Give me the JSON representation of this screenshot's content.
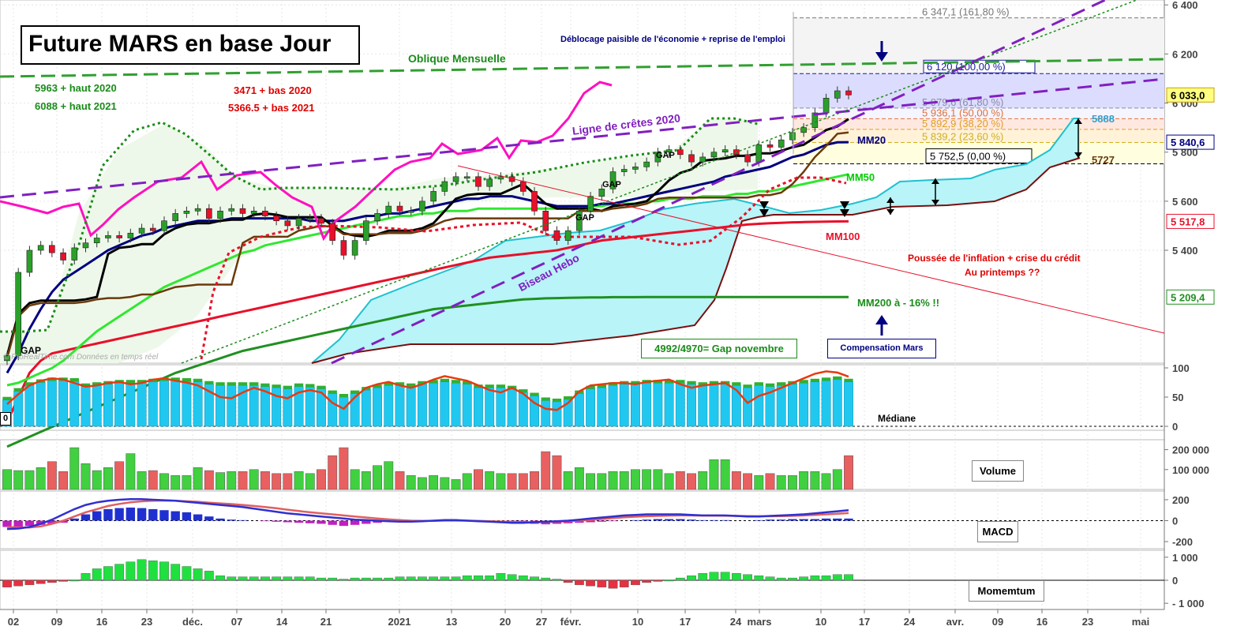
{
  "title": "Future MARS en base Jour",
  "watermark": "© ProRealTime.com  Données en temps réel",
  "annotations": {
    "haut2020": "5963 + haut 2020",
    "haut2021": "6088 + haut 2021",
    "bas2020": "3471 + bas 2020",
    "bas2021": "5366.5 + bas 2021",
    "oblique": "Oblique Mensuelle",
    "deblocage": "Déblocage paisible de l'économie + reprise de l'emploi",
    "lignecretes": "Ligne de crêtes 2020",
    "biseau": "Biseau Hebo",
    "inflation1": "Poussée de l'inflation + crise du crédit",
    "inflation2": "Au printemps ??",
    "mm20": "MM20",
    "mm50": "MM50",
    "mm100": "MM100",
    "mm200": "MM200 à - 16% !!",
    "gap": "GAP",
    "gapnov": "4992/4970= Gap novembre",
    "compensation": "Compensation Mars",
    "v5888": "5888",
    "v5727": "5727",
    "mediane": "Médiane",
    "volume": "Volume",
    "macd": "MACD",
    "momentum": "Momemtum",
    "lastrsi": "0"
  },
  "fibo": [
    {
      "label": "6 347,1 (161,80 %)",
      "value": 6347.1,
      "color": "#777777"
    },
    {
      "label": "6 120 (100,00 %)",
      "value": 6120,
      "color": "#1a1aa0"
    },
    {
      "label": "5 979,6 (61,80 %)",
      "value": 5979.6,
      "color": "#8a8aa8"
    },
    {
      "label": "5 936,1 (50,00 %)",
      "value": 5936.1,
      "color": "#e0703a"
    },
    {
      "label": "5 892,9 (38,20 %)",
      "value": 5892.9,
      "color": "#e0a020"
    },
    {
      "label": "5 839,2 (23,60 %)",
      "value": 5839.2,
      "color": "#d0b020"
    },
    {
      "label": "5 752,5 (0,00 %)",
      "value": 5752.5,
      "color": "#000000"
    }
  ],
  "price_tags": [
    {
      "label": "6 033,0",
      "value": 6033,
      "bg": "#ffff80",
      "color": "#000000",
      "border": "#c8a000"
    },
    {
      "label": "5 840,6",
      "value": 5840.6,
      "bg": "#ffffff",
      "color": "#000080",
      "border": "#000080"
    },
    {
      "label": "5 517,8",
      "value": 5517.8,
      "bg": "#ffffff",
      "color": "#e8102a",
      "border": "#e8102a"
    },
    {
      "label": "5 209,4",
      "value": 5209.4,
      "bg": "#ffffff",
      "color": "#209020",
      "border": "#209020"
    }
  ],
  "chart_data": [
    {
      "type": "candlestick",
      "title": "Future MARS en base Jour",
      "y_ticks": [
        6400,
        6200,
        6000,
        5800,
        5600,
        5400
      ],
      "y_tick_labels": [
        "6 400",
        "6 200",
        "6 000",
        "5 800",
        "5 600",
        "5 400"
      ],
      "ylim": [
        4940,
        6420
      ],
      "x_tick_labels": [
        "02",
        "09",
        "16",
        "23",
        "déc.",
        "07",
        "14",
        "21",
        "2021",
        "13",
        "20",
        "27",
        "févr.",
        "10",
        "17",
        "24",
        "mars",
        "10",
        "17",
        "24",
        "avr.",
        "09",
        "16",
        "23",
        "mai"
      ],
      "close": [
        4970,
        5310,
        5400,
        5420,
        5390,
        5360,
        5410,
        5430,
        5450,
        5460,
        5450,
        5470,
        5490,
        5480,
        5520,
        5550,
        5560,
        5570,
        5530,
        5560,
        5570,
        5550,
        5560,
        5540,
        5520,
        5500,
        5530,
        5530,
        5510,
        5440,
        5380,
        5440,
        5520,
        5550,
        5580,
        5560,
        5560,
        5600,
        5640,
        5680,
        5700,
        5700,
        5660,
        5690,
        5700,
        5680,
        5640,
        5560,
        5480,
        5440,
        5480,
        5560,
        5620,
        5650,
        5720,
        5730,
        5740,
        5760,
        5800,
        5810,
        5790,
        5760,
        5780,
        5800,
        5810,
        5790,
        5760,
        5830,
        5820,
        5850,
        5880,
        5900,
        5960,
        6020,
        6050,
        6033
      ],
      "ma20": [
        4900,
        4980,
        5080,
        5160,
        5230,
        5280,
        5310,
        5340,
        5370,
        5400,
        5420,
        5440,
        5460,
        5470,
        5490,
        5500,
        5510,
        5520,
        5520,
        5520,
        5530,
        5530,
        5530,
        5530,
        5530,
        5530,
        5530,
        5520,
        5520,
        5520,
        5520,
        5530,
        5540,
        5540,
        5550,
        5550,
        5560,
        5570,
        5580,
        5590,
        5600,
        5610,
        5610,
        5620,
        5620,
        5620,
        5610,
        5600,
        5590,
        5580,
        5580,
        5580,
        5580,
        5590,
        5590,
        5600,
        5610,
        5620,
        5630,
        5640,
        5650,
        5660,
        5670,
        5680,
        5700,
        5710,
        5720,
        5730,
        5740,
        5760,
        5780,
        5790,
        5810,
        5830,
        5840,
        5840.6
      ],
      "ma50": [
        4850,
        4860,
        4880,
        4900,
        4920,
        4950,
        4990,
        5030,
        5070,
        5100,
        5130,
        5160,
        5190,
        5220,
        5250,
        5270,
        5290,
        5310,
        5330,
        5350,
        5370,
        5390,
        5400,
        5420,
        5430,
        5440,
        5450,
        5460,
        5470,
        5480,
        5490,
        5500,
        5510,
        5520,
        5530,
        5540,
        5540,
        5550,
        5550,
        5560,
        5560,
        5560,
        5570,
        5570,
        5570,
        5570,
        5570,
        5570,
        5570,
        5570,
        5580,
        5580,
        5580,
        5580,
        5590,
        5590,
        5590,
        5600,
        5600,
        5610,
        5610,
        5610,
        5620,
        5620,
        5620,
        5630,
        5630,
        5640,
        5640,
        5650,
        5660,
        5670,
        5680,
        5690,
        5700,
        5710
      ],
      "ma100": [
        4700,
        4800,
        4900,
        4950,
        4980,
        4990,
        5000,
        5010,
        5020,
        5030,
        5040,
        5050,
        5060,
        5070,
        5080,
        5090,
        5100,
        5110,
        5120,
        5130,
        5140,
        5150,
        5160,
        5170,
        5180,
        5190,
        5200,
        5210,
        5220,
        5230,
        5240,
        5250,
        5260,
        5270,
        5280,
        5290,
        5300,
        5310,
        5320,
        5330,
        5340,
        5350,
        5360,
        5370,
        5375,
        5380,
        5385,
        5390,
        5395,
        5400,
        5410,
        5420,
        5430,
        5440,
        5445,
        5450,
        5455,
        5460,
        5465,
        5470,
        5475,
        5480,
        5485,
        5490,
        5495,
        5500,
        5505,
        5508,
        5510,
        5512,
        5514,
        5515,
        5516,
        5517,
        5517.5,
        5517.8
      ],
      "ma200": [
        4600,
        4620,
        4640,
        4660,
        4680,
        4700,
        4720,
        4740,
        4760,
        4780,
        4800,
        4820,
        4840,
        4860,
        4880,
        4900,
        4915,
        4930,
        4945,
        4960,
        4975,
        4990,
        5000,
        5010,
        5020,
        5030,
        5040,
        5050,
        5060,
        5070,
        5080,
        5090,
        5100,
        5110,
        5120,
        5130,
        5140,
        5150,
        5160,
        5165,
        5170,
        5175,
        5180,
        5185,
        5190,
        5195,
        5200,
        5202,
        5204,
        5205,
        5206,
        5207,
        5208,
        5208,
        5209,
        5209,
        5209,
        5209.2,
        5209.2,
        5209.3,
        5209.3,
        5209.3,
        5209.4,
        5209.4,
        5209.4,
        5209.4,
        5209.4,
        5209.4,
        5209.4,
        5209.4,
        5209.4,
        5209.4,
        5209.4,
        5209.4,
        5209.4,
        5209.4
      ]
    },
    {
      "type": "bar",
      "title": "RSI",
      "y_ticks": [
        0,
        50,
        100
      ],
      "ylim": [
        0,
        100
      ],
      "values": [
        45,
        60,
        70,
        75,
        78,
        78,
        77,
        68,
        70,
        72,
        74,
        74,
        74,
        76,
        78,
        78,
        77,
        76,
        72,
        70,
        70,
        70,
        70,
        68,
        66,
        64,
        68,
        67,
        64,
        56,
        50,
        56,
        62,
        66,
        70,
        70,
        68,
        72,
        74,
        76,
        74,
        72,
        66,
        66,
        66,
        64,
        58,
        52,
        44,
        42,
        46,
        56,
        64,
        66,
        70,
        72,
        72,
        74,
        74,
        74,
        74,
        72,
        70,
        72,
        72,
        70,
        66,
        70,
        68,
        70,
        72,
        74,
        76,
        78,
        80,
        76
      ],
      "line": [
        38,
        55,
        70,
        78,
        82,
        80,
        74,
        68,
        70,
        74,
        76,
        72,
        74,
        80,
        82,
        78,
        75,
        70,
        60,
        50,
        48,
        58,
        66,
        60,
        52,
        48,
        58,
        62,
        58,
        40,
        30,
        50,
        66,
        72,
        76,
        70,
        66,
        72,
        80,
        86,
        82,
        78,
        70,
        62,
        58,
        66,
        56,
        40,
        30,
        28,
        40,
        60,
        70,
        72,
        74,
        74,
        72,
        76,
        78,
        80,
        72,
        66,
        70,
        72,
        74,
        62,
        40,
        52,
        58,
        66,
        74,
        82,
        90,
        94,
        92,
        85
      ]
    },
    {
      "type": "bar",
      "title": "Volume",
      "y_ticks": [
        100000,
        200000
      ],
      "y_tick_labels": [
        "100 000",
        "200 000"
      ],
      "ylim": [
        0,
        230000
      ],
      "values": [
        100000,
        95000,
        95000,
        110000,
        140000,
        90000,
        210000,
        130000,
        95000,
        110000,
        140000,
        180000,
        90000,
        95000,
        80000,
        70000,
        70000,
        110000,
        95000,
        85000,
        90000,
        90000,
        100000,
        90000,
        80000,
        80000,
        90000,
        80000,
        100000,
        170000,
        210000,
        100000,
        90000,
        120000,
        140000,
        90000,
        70000,
        60000,
        70000,
        60000,
        50000,
        80000,
        100000,
        90000,
        80000,
        80000,
        80000,
        90000,
        190000,
        170000,
        90000,
        110000,
        80000,
        80000,
        90000,
        90000,
        100000,
        100000,
        100000,
        80000,
        90000,
        80000,
        90000,
        150000,
        150000,
        90000,
        80000,
        70000,
        80000,
        70000,
        70000,
        90000,
        90000,
        80000,
        100000,
        170000
      ]
    },
    {
      "type": "bar",
      "title": "MACD",
      "y_ticks": [
        200,
        0,
        -200
      ],
      "ylim": [
        -260,
        260
      ],
      "values": [
        -60,
        -60,
        -50,
        -40,
        -30,
        -20,
        20,
        60,
        90,
        110,
        120,
        125,
        120,
        110,
        100,
        90,
        80,
        60,
        40,
        20,
        10,
        5,
        0,
        -5,
        -10,
        -15,
        -20,
        -25,
        -30,
        -40,
        -50,
        -40,
        -30,
        -20,
        -10,
        -10,
        -5,
        0,
        5,
        5,
        5,
        0,
        -5,
        -10,
        -15,
        -20,
        -25,
        -30,
        -35,
        -30,
        -25,
        -20,
        -15,
        -10,
        -5,
        0,
        5,
        10,
        15,
        15,
        15,
        10,
        5,
        5,
        5,
        0,
        0,
        5,
        10,
        10,
        15,
        15,
        15,
        20,
        20,
        20
      ],
      "macd_line": [
        -80,
        -75,
        -60,
        -30,
        10,
        60,
        110,
        150,
        175,
        190,
        200,
        205,
        205,
        200,
        195,
        190,
        180,
        170,
        160,
        150,
        140,
        130,
        115,
        100,
        85,
        70,
        60,
        50,
        40,
        30,
        20,
        10,
        5,
        0,
        -5,
        -10,
        -10,
        -5,
        0,
        5,
        5,
        0,
        -5,
        -10,
        -15,
        -20,
        -20,
        -15,
        -10,
        -5,
        0,
        10,
        20,
        30,
        40,
        50,
        55,
        60,
        60,
        60,
        60,
        55,
        50,
        50,
        50,
        45,
        40,
        40,
        45,
        50,
        55,
        60,
        70,
        80,
        90,
        100
      ],
      "signal_line": [
        -60,
        -65,
        -65,
        -55,
        -30,
        0,
        40,
        80,
        110,
        140,
        160,
        175,
        185,
        190,
        192,
        190,
        185,
        180,
        172,
        165,
        158,
        150,
        140,
        130,
        118,
        105,
        92,
        80,
        70,
        60,
        50,
        40,
        30,
        20,
        12,
        5,
        0,
        -2,
        -2,
        0,
        0,
        0,
        -2,
        -5,
        -8,
        -12,
        -15,
        -15,
        -12,
        -10,
        -5,
        0,
        8,
        15,
        25,
        32,
        38,
        42,
        45,
        48,
        50,
        50,
        48,
        48,
        47,
        45,
        43,
        42,
        42,
        44,
        46,
        50,
        55,
        60,
        66,
        72
      ]
    },
    {
      "type": "bar",
      "title": "Momemtum",
      "y_ticks": [
        1000,
        0,
        -1000
      ],
      "y_tick_labels": [
        "1 000",
        "0",
        "- 1 000"
      ],
      "ylim": [
        -1200,
        1200
      ],
      "values": [
        -300,
        -250,
        -200,
        -150,
        -100,
        -50,
        0,
        300,
        500,
        600,
        700,
        800,
        900,
        850,
        800,
        700,
        600,
        500,
        400,
        200,
        150,
        150,
        150,
        150,
        150,
        150,
        150,
        150,
        100,
        100,
        50,
        100,
        100,
        100,
        100,
        150,
        150,
        150,
        150,
        150,
        150,
        200,
        200,
        200,
        300,
        250,
        200,
        150,
        100,
        50,
        -100,
        -200,
        -250,
        -300,
        -350,
        -300,
        -200,
        -100,
        -50,
        0,
        100,
        200,
        300,
        350,
        350,
        300,
        250,
        200,
        150,
        100,
        100,
        150,
        200,
        200,
        250,
        250
      ]
    }
  ]
}
